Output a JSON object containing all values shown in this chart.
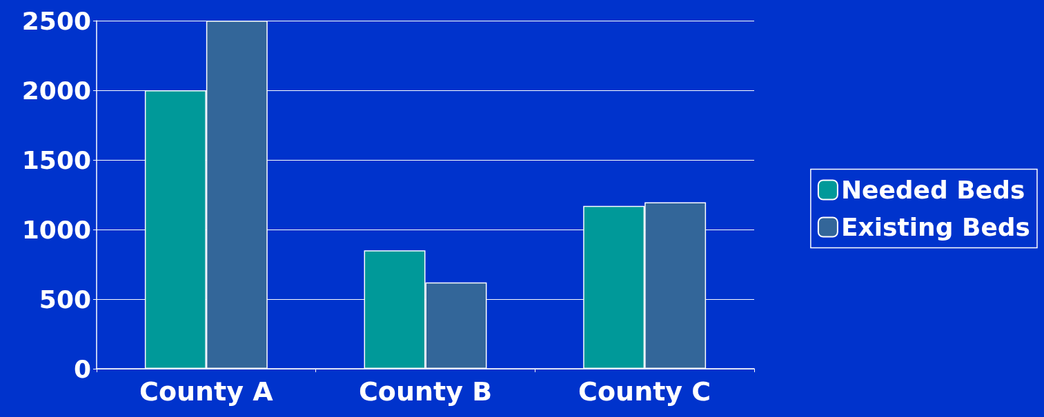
{
  "chart_data": {
    "type": "bar",
    "categories": [
      "County A",
      "County B",
      "County C"
    ],
    "series": [
      {
        "name": "Needed Beds",
        "color": "#009999",
        "values": [
          2000,
          850,
          1170
        ]
      },
      {
        "name": "Existing Beds",
        "color": "#336699",
        "values": [
          2500,
          620,
          1195
        ]
      }
    ],
    "ylim": [
      0,
      2500
    ],
    "yticks": [
      0,
      500,
      1000,
      1500,
      2000,
      2500
    ],
    "grid": "y",
    "legend": "right"
  }
}
